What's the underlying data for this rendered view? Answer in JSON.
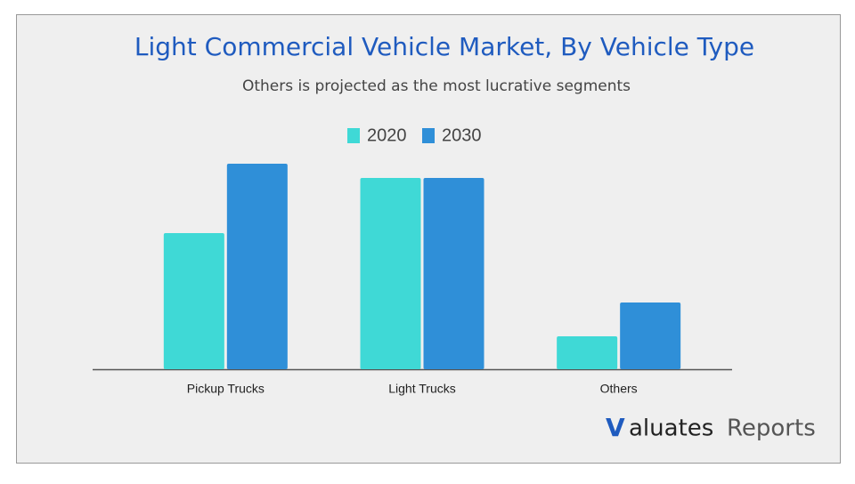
{
  "chart_data": {
    "type": "bar",
    "title": "Light Commercial Vehicle Market, By Vehicle Type",
    "subtitle": "Others is projected as the most lucrative segments",
    "categories": [
      "Pickup Trucks",
      "Light Trucks",
      "Others"
    ],
    "series": [
      {
        "name": "2020",
        "color": "#3fd9d6",
        "values": [
          153,
          215,
          37
        ]
      },
      {
        "name": "2030",
        "color": "#2f8fd8",
        "values": [
          231,
          215,
          75
        ]
      }
    ],
    "ylim": [
      0,
      250
    ],
    "legend": "top"
  },
  "brand": {
    "mark": "V",
    "name": "aluates",
    "suffix": "Reports"
  }
}
